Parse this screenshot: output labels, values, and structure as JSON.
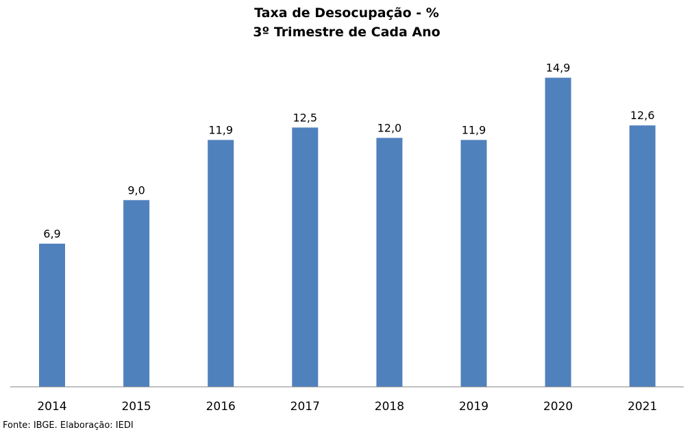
{
  "chart_data": {
    "type": "bar",
    "title": "Taxa de Desocupação - %",
    "subtitle": "3º Trimestre de Cada Ano",
    "categories": [
      "2014",
      "2015",
      "2016",
      "2017",
      "2018",
      "2019",
      "2020",
      "2021"
    ],
    "values": [
      6.9,
      9.0,
      11.9,
      12.5,
      12.0,
      11.9,
      14.9,
      12.6
    ],
    "data_labels": [
      "6,9",
      "9,0",
      "11,9",
      "12,5",
      "12,0",
      "11,9",
      "14,9",
      "12,6"
    ],
    "ylim": [
      0,
      16
    ],
    "grid": false,
    "legend": "none",
    "bar_color": "#4F81BD",
    "axis_color": "#808080"
  },
  "source_note": "Fonte: IBGE. Elaboração: IEDI"
}
